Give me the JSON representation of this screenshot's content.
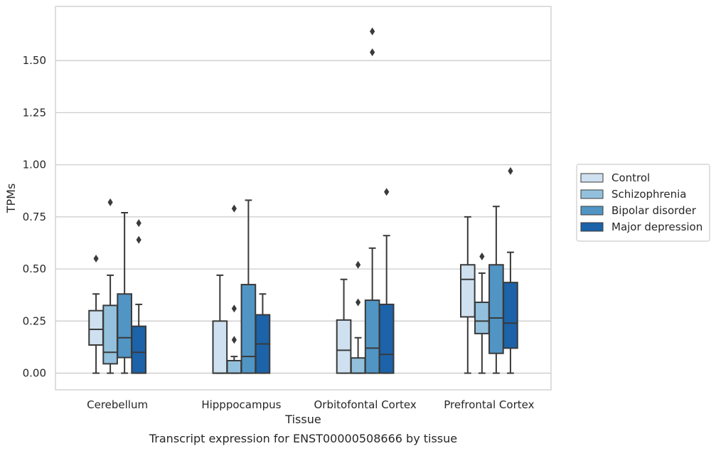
{
  "chart_data": {
    "type": "box",
    "title": "",
    "caption": "Transcript expression for ENST00000508666 by tissue",
    "xlabel": "Tissue",
    "ylabel": "TPMs",
    "ylim": [
      -0.08,
      1.76
    ],
    "yticks": [
      0.0,
      0.25,
      0.5,
      0.75,
      1.0,
      1.25,
      1.5
    ],
    "ytick_labels": [
      "0.00",
      "0.25",
      "0.50",
      "0.75",
      "1.00",
      "1.25",
      "1.50"
    ],
    "grid": "horizontal",
    "legend_position": "right",
    "categories": [
      "Cerebellum",
      "Hipppocampus",
      "Orbitofontal Cortex",
      "Prefrontal Cortex"
    ],
    "series": [
      {
        "name": "Control",
        "color": "#cfe0f0",
        "boxes": [
          {
            "whislo": 0.0,
            "q1": 0.135,
            "med": 0.21,
            "q3": 0.3,
            "whishi": 0.38,
            "fliers": [
              0.55
            ]
          },
          {
            "whislo": 0.0,
            "q1": 0.0,
            "med": 0.0,
            "q3": 0.25,
            "whishi": 0.47,
            "fliers": []
          },
          {
            "whislo": 0.0,
            "q1": 0.0,
            "med": 0.11,
            "q3": 0.255,
            "whishi": 0.45,
            "fliers": []
          },
          {
            "whislo": 0.0,
            "q1": 0.27,
            "med": 0.45,
            "q3": 0.52,
            "whishi": 0.75,
            "fliers": []
          }
        ]
      },
      {
        "name": "Schizophrenia",
        "color": "#93c1dd",
        "boxes": [
          {
            "whislo": 0.0,
            "q1": 0.045,
            "med": 0.1,
            "q3": 0.325,
            "whishi": 0.47,
            "fliers": [
              0.82
            ]
          },
          {
            "whislo": 0.0,
            "q1": 0.0,
            "med": 0.0,
            "q3": 0.06,
            "whishi": 0.08,
            "fliers": [
              0.16,
              0.31,
              0.79
            ]
          },
          {
            "whislo": 0.0,
            "q1": 0.0,
            "med": 0.0,
            "q3": 0.073,
            "whishi": 0.17,
            "fliers": [
              0.34,
              0.52
            ]
          },
          {
            "whislo": 0.0,
            "q1": 0.19,
            "med": 0.25,
            "q3": 0.34,
            "whishi": 0.48,
            "fliers": [
              0.56
            ]
          }
        ]
      },
      {
        "name": "Bipolar disorder",
        "color": "#5195c5",
        "boxes": [
          {
            "whislo": 0.0,
            "q1": 0.075,
            "med": 0.17,
            "q3": 0.38,
            "whishi": 0.77,
            "fliers": []
          },
          {
            "whislo": 0.0,
            "q1": 0.0,
            "med": 0.08,
            "q3": 0.425,
            "whishi": 0.83,
            "fliers": []
          },
          {
            "whislo": 0.0,
            "q1": 0.0,
            "med": 0.12,
            "q3": 0.35,
            "whishi": 0.6,
            "fliers": [
              1.54,
              1.64
            ]
          },
          {
            "whislo": 0.0,
            "q1": 0.095,
            "med": 0.265,
            "q3": 0.52,
            "whishi": 0.8,
            "fliers": []
          }
        ]
      },
      {
        "name": "Major depression",
        "color": "#1c63a9",
        "boxes": [
          {
            "whislo": 0.0,
            "q1": 0.0,
            "med": 0.1,
            "q3": 0.225,
            "whishi": 0.33,
            "fliers": [
              0.64,
              0.72
            ]
          },
          {
            "whislo": 0.0,
            "q1": 0.0,
            "med": 0.14,
            "q3": 0.28,
            "whishi": 0.38,
            "fliers": []
          },
          {
            "whislo": 0.0,
            "q1": 0.0,
            "med": 0.09,
            "q3": 0.33,
            "whishi": 0.66,
            "fliers": [
              0.87
            ]
          },
          {
            "whislo": 0.0,
            "q1": 0.12,
            "med": 0.24,
            "q3": 0.435,
            "whishi": 0.58,
            "fliers": [
              0.97
            ]
          }
        ]
      }
    ]
  }
}
